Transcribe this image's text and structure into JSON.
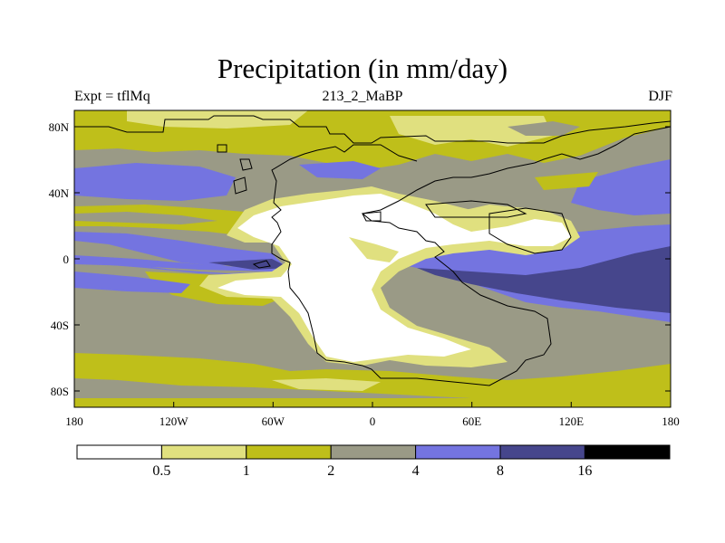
{
  "header": {
    "title": "Precipitation (in mm/day)",
    "left_label": "Expt = tflMq",
    "center_label": "213_2_MaBP",
    "right_label": "DJF"
  },
  "map": {
    "x_ticks": [
      "180",
      "120W",
      "60W",
      "0",
      "60E",
      "120E",
      "180"
    ],
    "y_ticks": [
      "80N",
      "40N",
      "0",
      "40S",
      "80S"
    ],
    "lon_range": [
      -180,
      180
    ],
    "lat_range": [
      -90,
      90
    ]
  },
  "colorbar": {
    "labels": [
      "0.5",
      "1",
      "2",
      "4",
      "8",
      "16"
    ],
    "colors": [
      "#ffffff",
      "#e0e07f",
      "#bfbf1a",
      "#9a9a86",
      "#7474e0",
      "#46468c",
      "#000000"
    ]
  }
}
